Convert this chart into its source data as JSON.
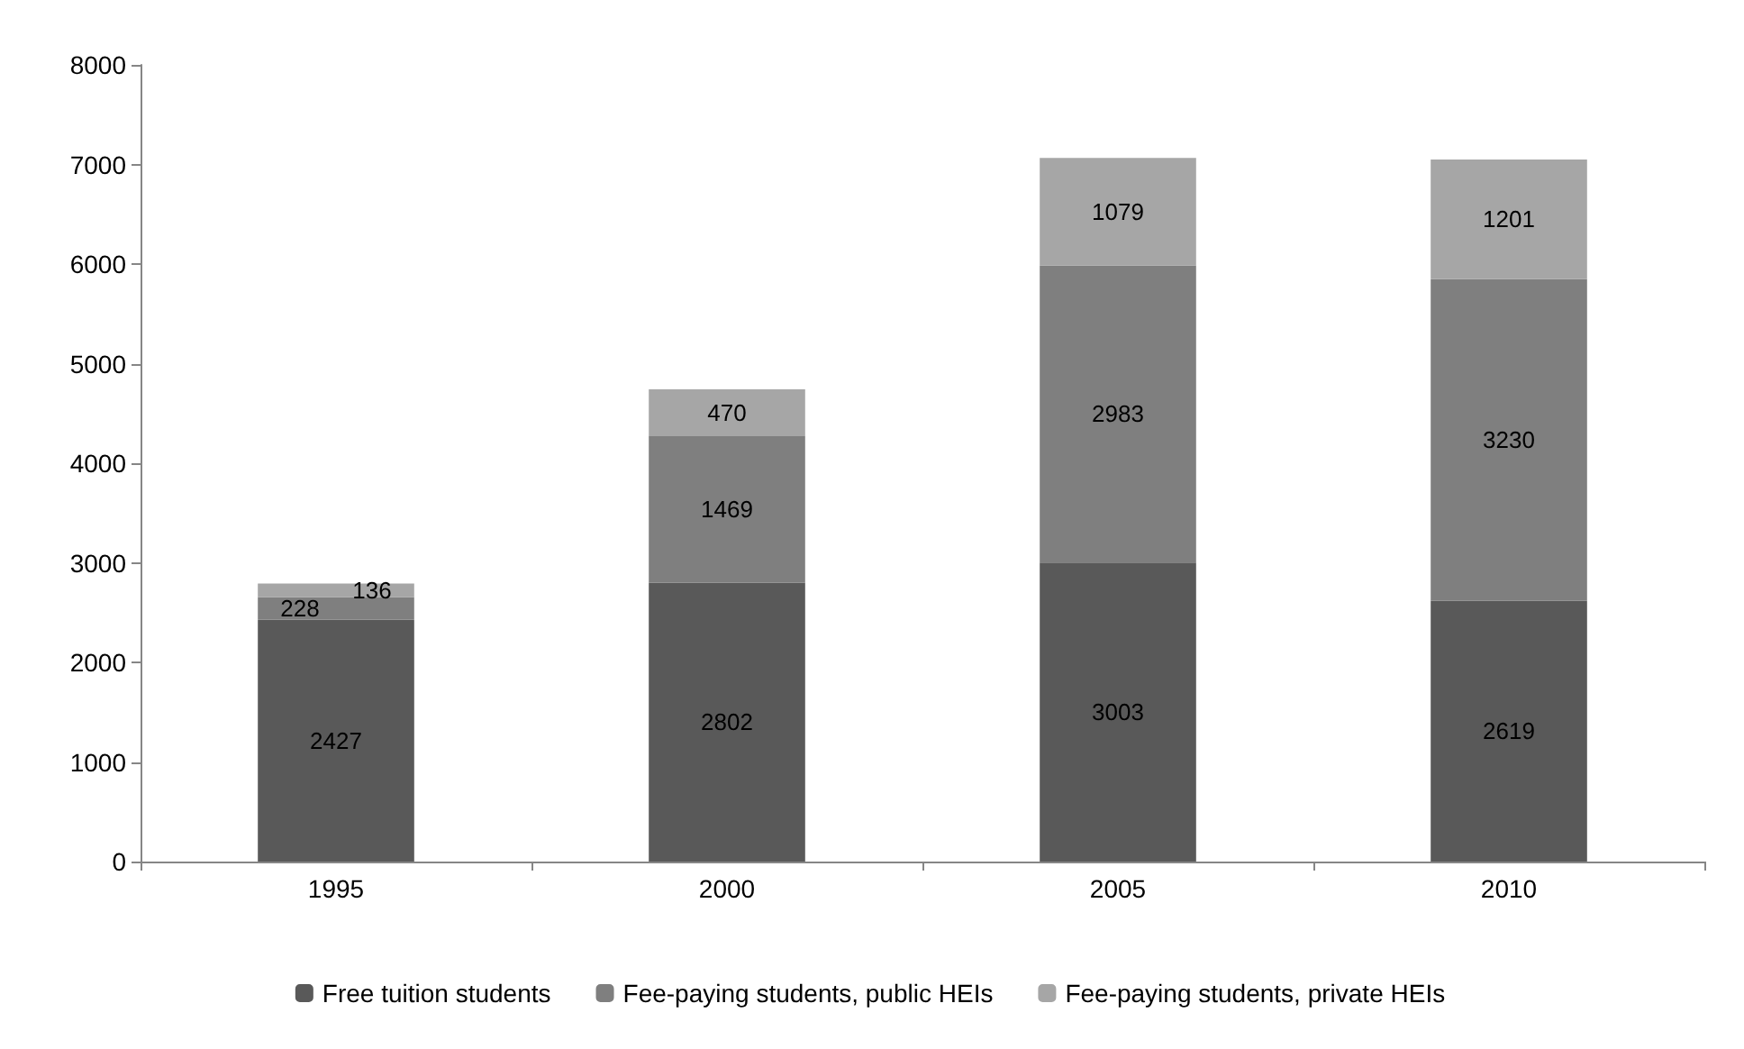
{
  "chart_data": {
    "type": "bar",
    "stacked": true,
    "categories": [
      "1995",
      "2000",
      "2005",
      "2010"
    ],
    "series": [
      {
        "name": "Free tuition students",
        "color": "#595959",
        "values": [
          2427,
          2802,
          3003,
          2619
        ]
      },
      {
        "name": "Fee-paying students, public HEIs",
        "color": "#7f7f7f",
        "values": [
          228,
          1469,
          2983,
          3230
        ]
      },
      {
        "name": "Fee-paying students, private HEIs",
        "color": "#a6a6a6",
        "values": [
          136,
          470,
          1079,
          1201
        ]
      }
    ],
    "ylim": [
      0,
      8000
    ],
    "yticks": [
      0,
      1000,
      2000,
      3000,
      4000,
      5000,
      6000,
      7000,
      8000
    ],
    "grid": false,
    "legend": "bottom",
    "data_labels": true
  }
}
